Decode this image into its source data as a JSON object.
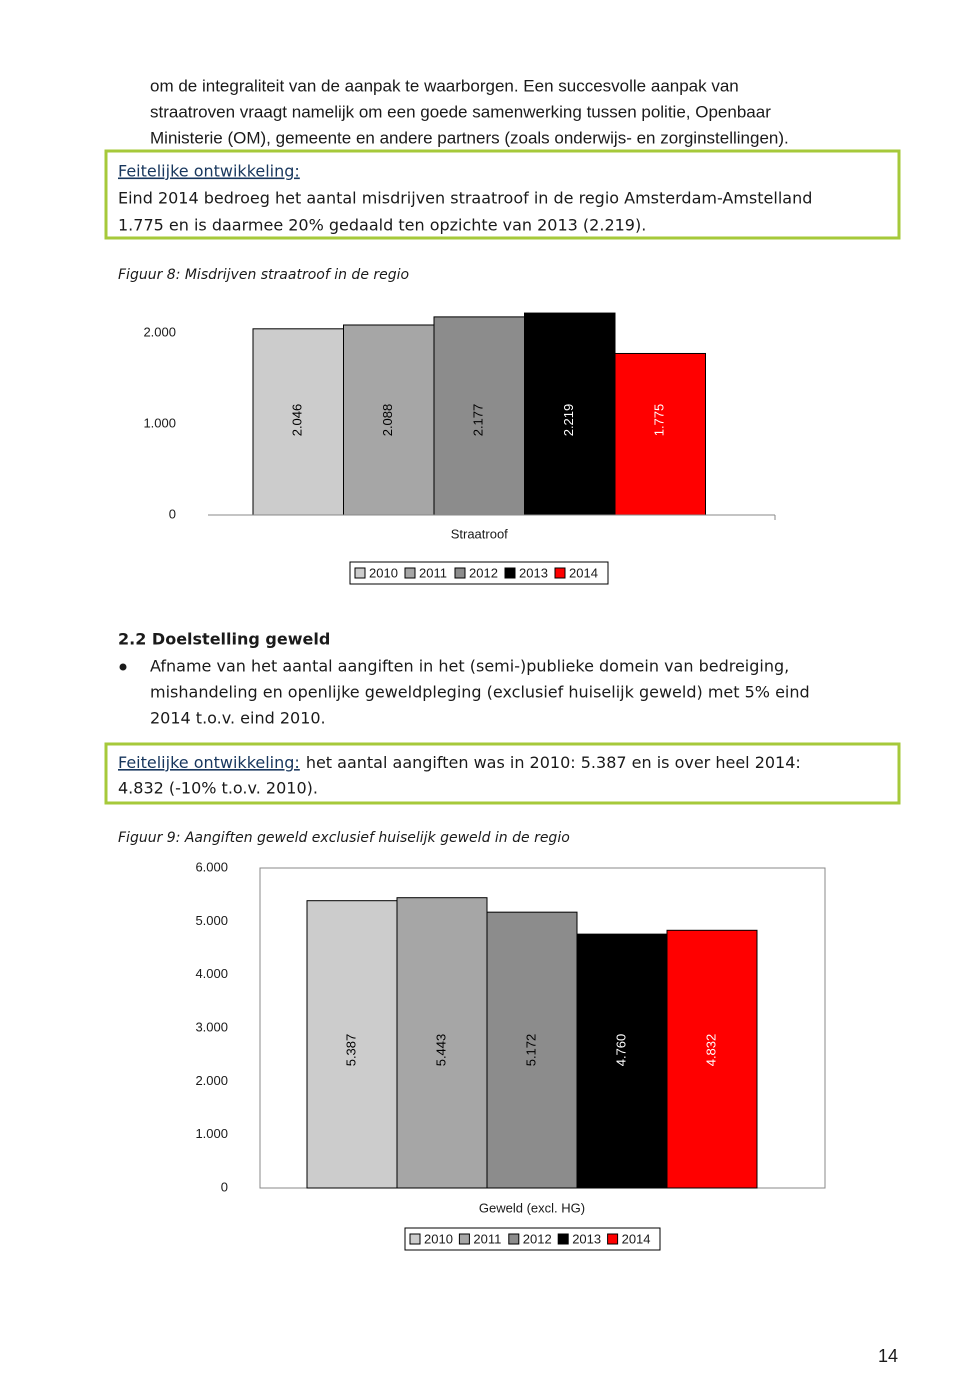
{
  "paragraph_1": {
    "lines": [
      "om de integraliteit van de aanpak te waarborgen. Een succesvolle aanpak van",
      "straatroven vraagt namelijk om een goede samenwerking tussen politie, Openbaar",
      "Ministerie (OM), gemeente en andere partners (zoals onderwijs- en zorginstellingen)."
    ]
  },
  "box_1": {
    "label": "Feitelijke ontwikkeling:",
    "lines": [
      "Eind 2014 bedroeg het aantal misdrijven straatroof in de regio Amsterdam-Amstelland",
      "1.775 en is daarmee 20% gedaald ten opzichte van 2013 (2.219)."
    ]
  },
  "section": {
    "heading": "2.2 Doelstelling geweld",
    "bullet_lines": [
      "Afname van het aantal aangiften in het (semi-)publieke domein van bedreiging,",
      "mishandeling en openlijke geweldpleging (exclusief huiselijk geweld) met 5% eind",
      "2014 t.o.v. eind 2010."
    ]
  },
  "box_2": {
    "label": "Feitelijke ontwikkeling:",
    "lines": [
      "het aantal aangiften was in 2010: 5.387 en is over heel 2014:",
      "4.832 (-10% t.o.v. 2010)."
    ]
  },
  "page_number": "14",
  "chart_data": [
    {
      "type": "bar",
      "title": "Figuur 8: Misdrijven straatroof in de regio",
      "categories": [
        "Straatroof"
      ],
      "series": [
        {
          "name": "2010",
          "color": "#cccccc",
          "values": [
            2046
          ],
          "value_labels": [
            "2.046"
          ]
        },
        {
          "name": "2011",
          "color": "#a6a6a6",
          "values": [
            2088
          ],
          "value_labels": [
            "2.088"
          ]
        },
        {
          "name": "2012",
          "color": "#8c8c8c",
          "values": [
            2177
          ],
          "value_labels": [
            "2.177"
          ]
        },
        {
          "name": "2013",
          "color": "#000000",
          "values": [
            2219
          ],
          "value_labels": [
            "2.219"
          ]
        },
        {
          "name": "2014",
          "color": "#ff0000",
          "values": [
            1775
          ],
          "value_labels": [
            "1.775"
          ]
        }
      ],
      "ylim": [
        0,
        2000
      ],
      "yticks": [
        0,
        {
          "value": 1000,
          "label": "1.000"
        },
        {
          "value": 2000,
          "label": "2.000"
        }
      ],
      "legend": "bottom"
    },
    {
      "type": "bar",
      "title": "Figuur 9: Aangiften geweld exclusief huiselijk geweld in de regio",
      "categories": [
        "Geweld (excl. HG)"
      ],
      "series": [
        {
          "name": "2010",
          "color": "#cccccc",
          "values": [
            5387
          ],
          "value_labels": [
            "5.387"
          ]
        },
        {
          "name": "2011",
          "color": "#a6a6a6",
          "values": [
            5443
          ],
          "value_labels": [
            "5.443"
          ]
        },
        {
          "name": "2012",
          "color": "#8c8c8c",
          "values": [
            5172
          ],
          "value_labels": [
            "5.172"
          ]
        },
        {
          "name": "2013",
          "color": "#000000",
          "values": [
            4760
          ],
          "value_labels": [
            "4.760"
          ]
        },
        {
          "name": "2014",
          "color": "#ff0000",
          "values": [
            4832
          ],
          "value_labels": [
            "4.832"
          ]
        }
      ],
      "ylim": [
        0,
        6000
      ],
      "yticks": [
        0,
        {
          "value": 1000,
          "label": "1.000"
        },
        {
          "value": 2000,
          "label": "2.000"
        },
        {
          "value": 3000,
          "label": "3.000"
        },
        {
          "value": 4000,
          "label": "4.000"
        },
        {
          "value": 5000,
          "label": "5.000"
        },
        {
          "value": 6000,
          "label": "6.000"
        }
      ],
      "legend": "bottom"
    }
  ]
}
